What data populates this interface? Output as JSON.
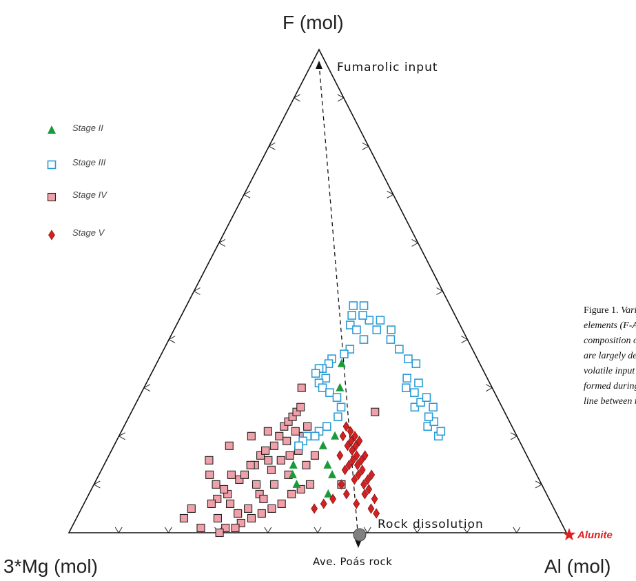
{
  "chart_data": {
    "type": "ternary-scatter",
    "vertices": {
      "top": "F (mol)",
      "left": "3*Mg (mol)",
      "right": "Al (mol)"
    },
    "series": [
      {
        "name": "Stage II",
        "marker": "triangle",
        "color": "#1a9a3a",
        "points": [
          [
            0.44,
            0.88
          ],
          [
            0.45,
            0.9
          ],
          [
            0.44,
            0.86
          ],
          [
            0.52,
            0.92
          ],
          [
            0.53,
            0.88
          ],
          [
            0.52,
            0.86
          ],
          [
            0.51,
            0.82
          ],
          [
            0.54,
            0.8
          ],
          [
            0.56,
            0.7
          ],
          [
            0.57,
            0.65
          ]
        ]
      },
      {
        "name": "Stage III",
        "marker": "open-square",
        "color": "#2a9bd6",
        "points": [
          [
            0.78,
            0.78
          ],
          [
            0.8,
            0.8
          ],
          [
            0.81,
            0.79
          ],
          [
            0.8,
            0.77
          ],
          [
            0.79,
            0.76
          ],
          [
            0.76,
            0.74
          ],
          [
            0.78,
            0.73
          ],
          [
            0.8,
            0.72
          ],
          [
            0.81,
            0.74
          ],
          [
            0.77,
            0.71
          ],
          [
            0.75,
            0.7
          ],
          [
            0.76,
            0.68
          ],
          [
            0.79,
            0.69
          ],
          [
            0.8,
            0.65
          ],
          [
            0.78,
            0.64
          ],
          [
            0.76,
            0.62
          ],
          [
            0.74,
            0.6
          ],
          [
            0.75,
            0.58
          ],
          [
            0.7,
            0.58
          ],
          [
            0.72,
            0.56
          ],
          [
            0.68,
            0.56
          ],
          [
            0.66,
            0.55
          ],
          [
            0.67,
            0.53
          ],
          [
            0.63,
            0.53
          ],
          [
            0.62,
            0.55
          ],
          [
            0.61,
            0.57
          ],
          [
            0.63,
            0.58
          ],
          [
            0.65,
            0.6
          ],
          [
            0.6,
            0.62
          ],
          [
            0.58,
            0.63
          ],
          [
            0.54,
            0.64
          ],
          [
            0.53,
            0.65
          ],
          [
            0.51,
            0.66
          ],
          [
            0.5,
            0.66
          ],
          [
            0.52,
            0.68
          ],
          [
            0.5,
            0.69
          ],
          [
            0.49,
            0.67
          ],
          [
            0.51,
            0.7
          ],
          [
            0.53,
            0.71
          ],
          [
            0.55,
            0.72
          ],
          [
            0.56,
            0.74
          ],
          [
            0.55,
            0.76
          ],
          [
            0.52,
            0.78
          ],
          [
            0.5,
            0.79
          ],
          [
            0.49,
            0.8
          ],
          [
            0.47,
            0.8
          ],
          [
            0.46,
            0.81
          ],
          [
            0.45,
            0.82
          ]
        ]
      },
      {
        "name": "Stage IV",
        "marker": "filled-square",
        "color": "#f0a0a8",
        "points": [
          [
            0.3,
            0.88
          ],
          [
            0.32,
            0.89
          ],
          [
            0.33,
            0.88
          ],
          [
            0.35,
            0.86
          ],
          [
            0.34,
            0.86
          ],
          [
            0.36,
            0.84
          ],
          [
            0.38,
            0.85
          ],
          [
            0.37,
            0.83
          ],
          [
            0.39,
            0.82
          ],
          [
            0.4,
            0.8
          ],
          [
            0.41,
            0.78
          ],
          [
            0.42,
            0.77
          ],
          [
            0.43,
            0.76
          ],
          [
            0.44,
            0.75
          ],
          [
            0.45,
            0.74
          ],
          [
            0.39,
            0.87
          ],
          [
            0.41,
            0.85
          ],
          [
            0.43,
            0.84
          ],
          [
            0.45,
            0.83
          ],
          [
            0.46,
            0.8
          ],
          [
            0.47,
            0.78
          ],
          [
            0.44,
            0.79
          ],
          [
            0.42,
            0.81
          ],
          [
            0.36,
            0.9
          ],
          [
            0.37,
            0.92
          ],
          [
            0.38,
            0.93
          ],
          [
            0.35,
            0.95
          ],
          [
            0.33,
            0.96
          ],
          [
            0.31,
            0.94
          ],
          [
            0.3,
            0.92
          ],
          [
            0.29,
            0.91
          ],
          [
            0.28,
            0.93
          ],
          [
            0.27,
            0.94
          ],
          [
            0.29,
            0.97
          ],
          [
            0.31,
            0.99
          ],
          [
            0.34,
            0.98
          ],
          [
            0.36,
            0.97
          ],
          [
            0.38,
            0.96
          ],
          [
            0.4,
            0.95
          ],
          [
            0.42,
            0.94
          ],
          [
            0.44,
            0.92
          ],
          [
            0.46,
            0.91
          ],
          [
            0.48,
            0.9
          ],
          [
            0.4,
            0.9
          ],
          [
            0.43,
            0.88
          ],
          [
            0.47,
            0.86
          ],
          [
            0.49,
            0.84
          ],
          [
            0.37,
            0.79
          ],
          [
            0.33,
            0.8
          ],
          [
            0.28,
            0.82
          ],
          [
            0.24,
            0.85
          ],
          [
            0.25,
            0.88
          ],
          [
            0.27,
            0.9
          ],
          [
            0.23,
            0.95
          ],
          [
            0.22,
            0.97
          ],
          [
            0.26,
            0.99
          ],
          [
            0.3,
            1.0
          ],
          [
            0.33,
            0.99
          ],
          [
            0.45,
            0.7
          ],
          [
            0.55,
            0.9
          ],
          [
            0.65,
            0.75
          ]
        ]
      },
      {
        "name": "Stage V",
        "marker": "diamond",
        "color": "#d42020",
        "points": [
          [
            0.57,
            0.78
          ],
          [
            0.58,
            0.79
          ],
          [
            0.59,
            0.8
          ],
          [
            0.58,
            0.81
          ],
          [
            0.57,
            0.82
          ],
          [
            0.58,
            0.83
          ],
          [
            0.59,
            0.82
          ],
          [
            0.6,
            0.81
          ],
          [
            0.59,
            0.84
          ],
          [
            0.58,
            0.85
          ],
          [
            0.57,
            0.86
          ],
          [
            0.59,
            0.86
          ],
          [
            0.6,
            0.85
          ],
          [
            0.61,
            0.84
          ],
          [
            0.6,
            0.87
          ],
          [
            0.59,
            0.88
          ],
          [
            0.58,
            0.89
          ],
          [
            0.6,
            0.9
          ],
          [
            0.61,
            0.89
          ],
          [
            0.62,
            0.88
          ],
          [
            0.61,
            0.91
          ],
          [
            0.6,
            0.92
          ],
          [
            0.62,
            0.93
          ],
          [
            0.61,
            0.95
          ],
          [
            0.62,
            0.96
          ],
          [
            0.56,
            0.8
          ],
          [
            0.55,
            0.84
          ],
          [
            0.56,
            0.87
          ],
          [
            0.55,
            0.9
          ],
          [
            0.53,
            0.93
          ],
          [
            0.51,
            0.94
          ],
          [
            0.49,
            0.95
          ],
          [
            0.56,
            0.92
          ],
          [
            0.58,
            0.94
          ]
        ]
      }
    ],
    "arrow": {
      "from_label": "Fumarolic input",
      "to_label": "Rock dissolution"
    },
    "annotations": [
      {
        "label": "Ave. Poás rock",
        "marker": "circle",
        "color": "#808080"
      },
      {
        "label": "Alunite",
        "marker": "star",
        "color": "#e02020"
      }
    ]
  },
  "caption_lines": [
    {
      "lead": "Figure 1.",
      "text": "Variation in"
    },
    {
      "text": "elements (F-Al-Mg)"
    },
    {
      "text": "composition of Poás"
    },
    {
      "text": "are largely derived"
    },
    {
      "text": "volatile input (anion"
    },
    {
      "text": "formed during water"
    },
    {
      "text": "line between rock and"
    }
  ]
}
